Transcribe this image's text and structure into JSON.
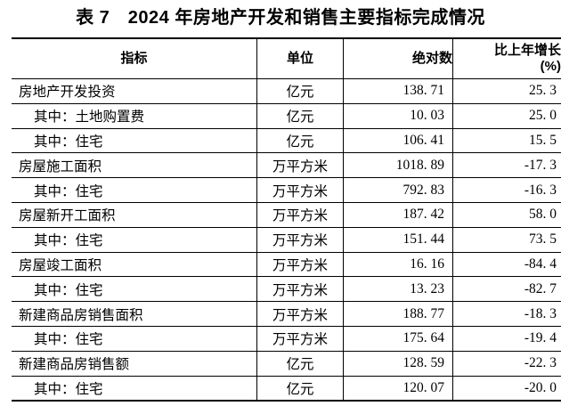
{
  "title": "表 7　2024 年房地产开发和销售主要指标完成情况",
  "table": {
    "header": {
      "indicator": "指标",
      "unit": "单位",
      "absolute": "绝对数",
      "growth_line1": "比上年增长",
      "growth_line2": "(%)"
    },
    "rows": [
      {
        "indicator": "房地产开发投资",
        "indent": false,
        "unit": "亿元",
        "absolute": "138. 71",
        "growth": "25. 3"
      },
      {
        "indicator": "其中：土地购置费",
        "indent": true,
        "unit": "亿元",
        "absolute": "10. 03",
        "growth": "25. 0"
      },
      {
        "indicator": "其中：住宅",
        "indent": true,
        "unit": "亿元",
        "absolute": "106. 41",
        "growth": "15. 5"
      },
      {
        "indicator": "房屋施工面积",
        "indent": false,
        "unit": "万平方米",
        "absolute": "1018. 89",
        "growth": "-17. 3"
      },
      {
        "indicator": "其中：住宅",
        "indent": true,
        "unit": "万平方米",
        "absolute": "792. 83",
        "growth": "-16. 3"
      },
      {
        "indicator": "房屋新开工面积",
        "indent": false,
        "unit": "万平方米",
        "absolute": "187. 42",
        "growth": "58. 0"
      },
      {
        "indicator": "其中：住宅",
        "indent": true,
        "unit": "万平方米",
        "absolute": "151. 44",
        "growth": "73. 5"
      },
      {
        "indicator": "房屋竣工面积",
        "indent": false,
        "unit": "万平方米",
        "absolute": "16. 16",
        "growth": "-84. 4"
      },
      {
        "indicator": "其中：住宅",
        "indent": true,
        "unit": "万平方米",
        "absolute": "13. 23",
        "growth": "-82. 7"
      },
      {
        "indicator": "新建商品房销售面积",
        "indent": false,
        "unit": "万平方米",
        "absolute": "188. 77",
        "growth": "-18. 3"
      },
      {
        "indicator": "其中：住宅",
        "indent": true,
        "unit": "万平方米",
        "absolute": "175. 64",
        "growth": "-19. 4"
      },
      {
        "indicator": "新建商品房销售额",
        "indent": false,
        "unit": "亿元",
        "absolute": "128. 59",
        "growth": "-22. 3"
      },
      {
        "indicator": "其中：住宅",
        "indent": true,
        "unit": "亿元",
        "absolute": "120. 07",
        "growth": "-20. 0"
      }
    ]
  }
}
